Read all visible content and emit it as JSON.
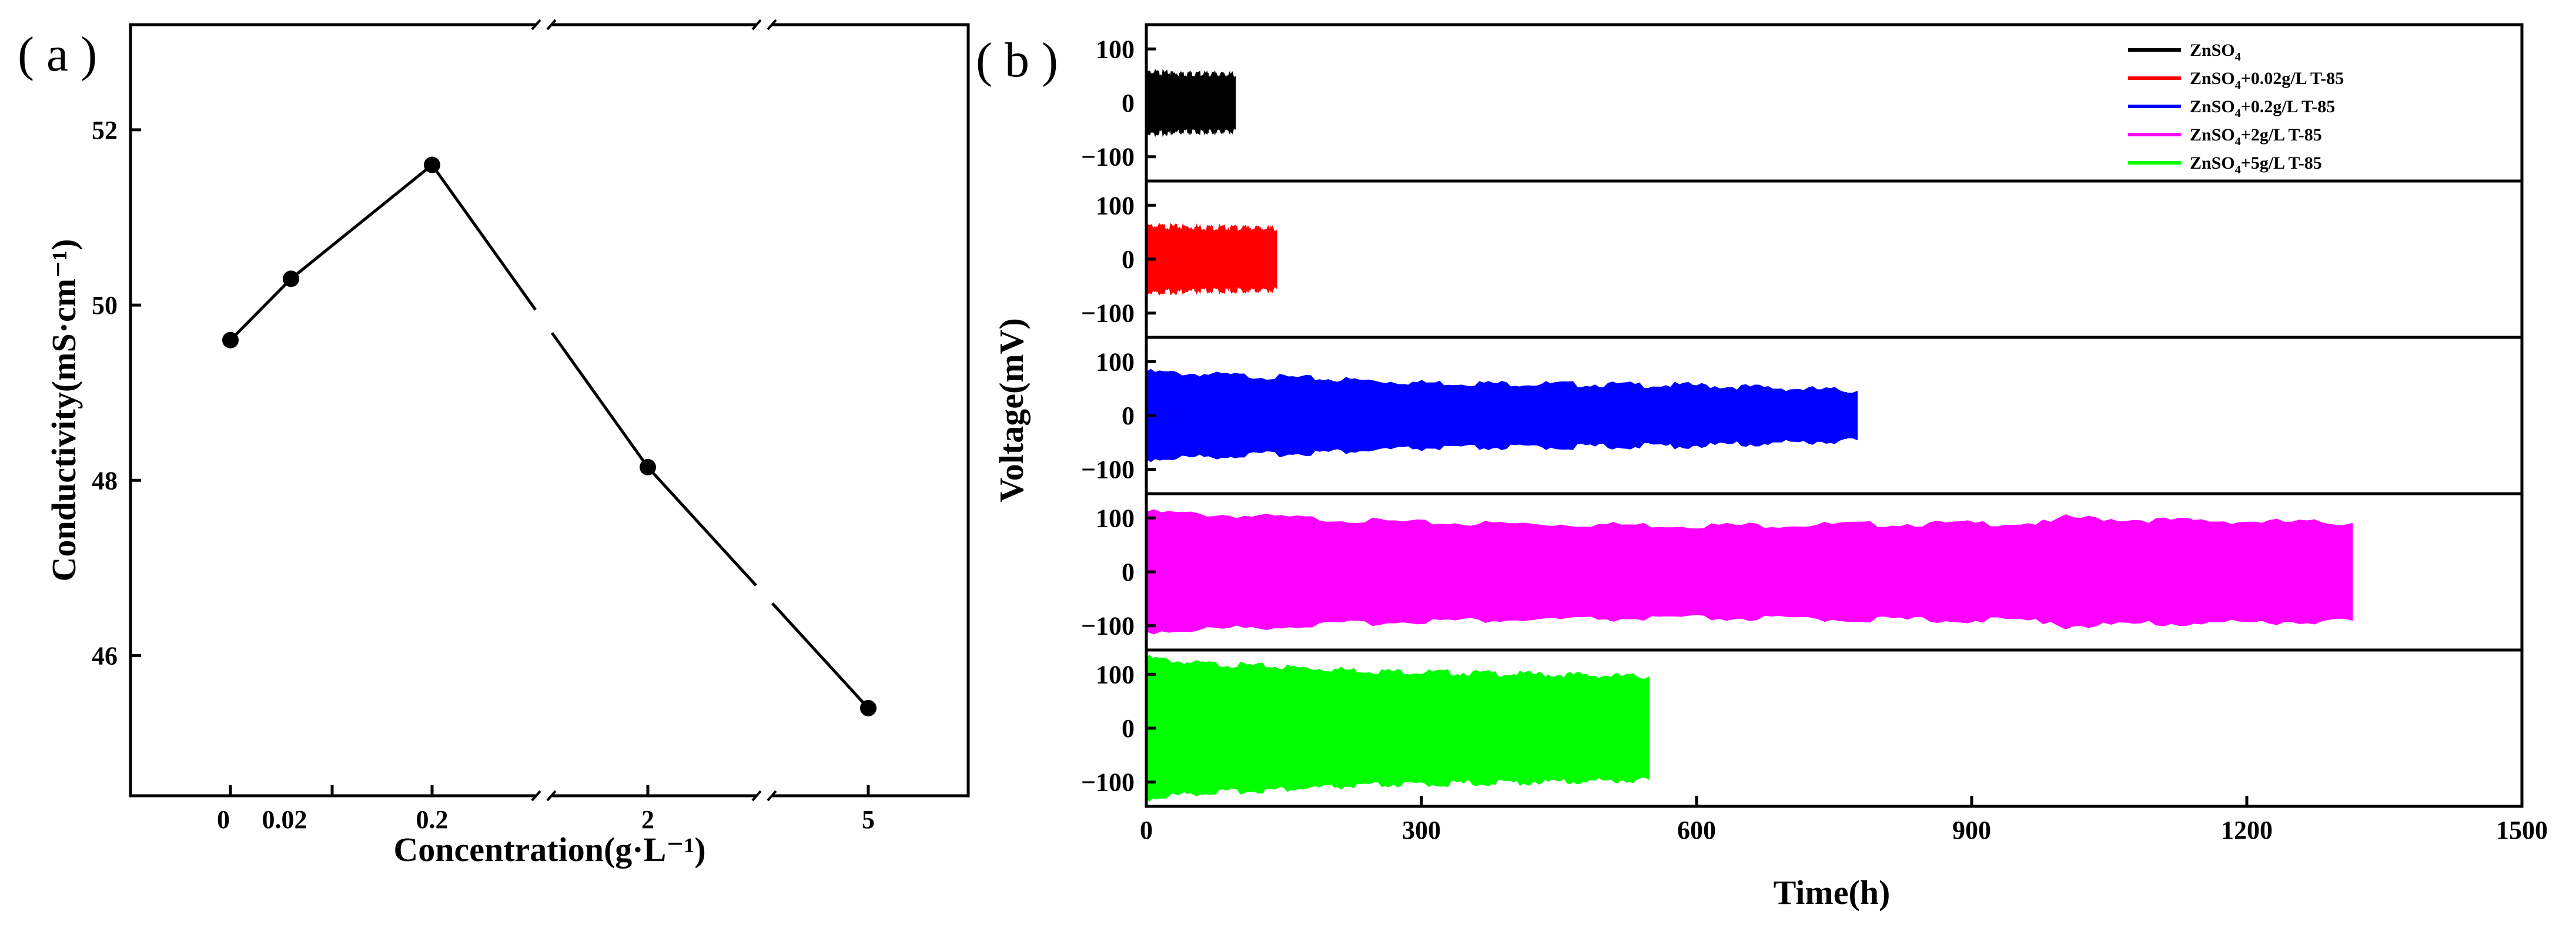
{
  "chart_data": [
    {
      "panel": "a",
      "panel_label": "( a )",
      "type": "line",
      "xlabel": "Concentration(g·L⁻¹)",
      "ylabel": "Conductivity(mS·cm⁻¹)",
      "ylim": [
        44.4,
        53.2
      ],
      "yticks": [
        46,
        48,
        50,
        52
      ],
      "x_categories": [
        "0",
        "0.02",
        "0.2",
        "2",
        "5"
      ],
      "x_axis_breaks": 2,
      "points": [
        {
          "x": 0,
          "y": 49.6
        },
        {
          "x": 0.02,
          "y": 50.3
        },
        {
          "x": 0.2,
          "y": 51.6
        },
        {
          "x": 2,
          "y": 48.15
        },
        {
          "x": 5,
          "y": 45.4
        }
      ]
    },
    {
      "panel": "b",
      "panel_label": "( b )",
      "type": "line",
      "xlabel": "Time(h)",
      "ylabel": "Voltage(mV)",
      "xlim": [
        0,
        1500
      ],
      "xticks": [
        0,
        300,
        600,
        900,
        1200,
        1500
      ],
      "ylim_each": [
        -145,
        145
      ],
      "yticks": [
        100,
        0,
        -100
      ],
      "ytick_labels": [
        "100",
        "0",
        "−100"
      ],
      "series": [
        {
          "name": "ZnSO4",
          "legend": "ZnSO",
          "legend_sub": "4",
          "legend_suffix": "",
          "color": "#000000",
          "duration_h": 97,
          "amplitude_mV": [
            [
              0,
              55
            ],
            [
              97,
              50
            ]
          ]
        },
        {
          "name": "ZnSO4+0.02g/L T-85",
          "legend": "ZnSO",
          "legend_sub": "4",
          "legend_suffix": "+0.02g/L T-85",
          "color": "#ff0000",
          "duration_h": 142,
          "amplitude_mV": [
            [
              0,
              60
            ],
            [
              142,
              55
            ]
          ]
        },
        {
          "name": "ZnSO4+0.2g/L T-85",
          "legend": "ZnSO",
          "legend_sub": "4",
          "legend_suffix": "+0.2g/L T-85",
          "color": "#0000ff",
          "duration_h": 775,
          "amplitude_mV": [
            [
              0,
              80
            ],
            [
              300,
              60
            ],
            [
              600,
              55
            ],
            [
              775,
              45
            ]
          ]
        },
        {
          "name": "ZnSO4+2g/L T-85",
          "legend": "ZnSO",
          "legend_sub": "4",
          "legend_suffix": "+2g/L T-85",
          "color": "#ff00ff",
          "duration_h": 1315,
          "amplitude_mV": [
            [
              0,
              110
            ],
            [
              300,
              90
            ],
            [
              600,
              85
            ],
            [
              990,
              90
            ],
            [
              1000,
              100
            ],
            [
              1100,
              95
            ],
            [
              1315,
              90
            ]
          ]
        },
        {
          "name": "ZnSO4+5g/L T-85",
          "legend": "ZnSO",
          "legend_sub": "4",
          "legend_suffix": "+5g/L T-85",
          "color": "#00ff00",
          "duration_h": 548,
          "amplitude_mV": [
            [
              0,
              130
            ],
            [
              50,
              120
            ],
            [
              250,
              105
            ],
            [
              400,
              100
            ],
            [
              548,
              95
            ]
          ]
        }
      ]
    }
  ]
}
